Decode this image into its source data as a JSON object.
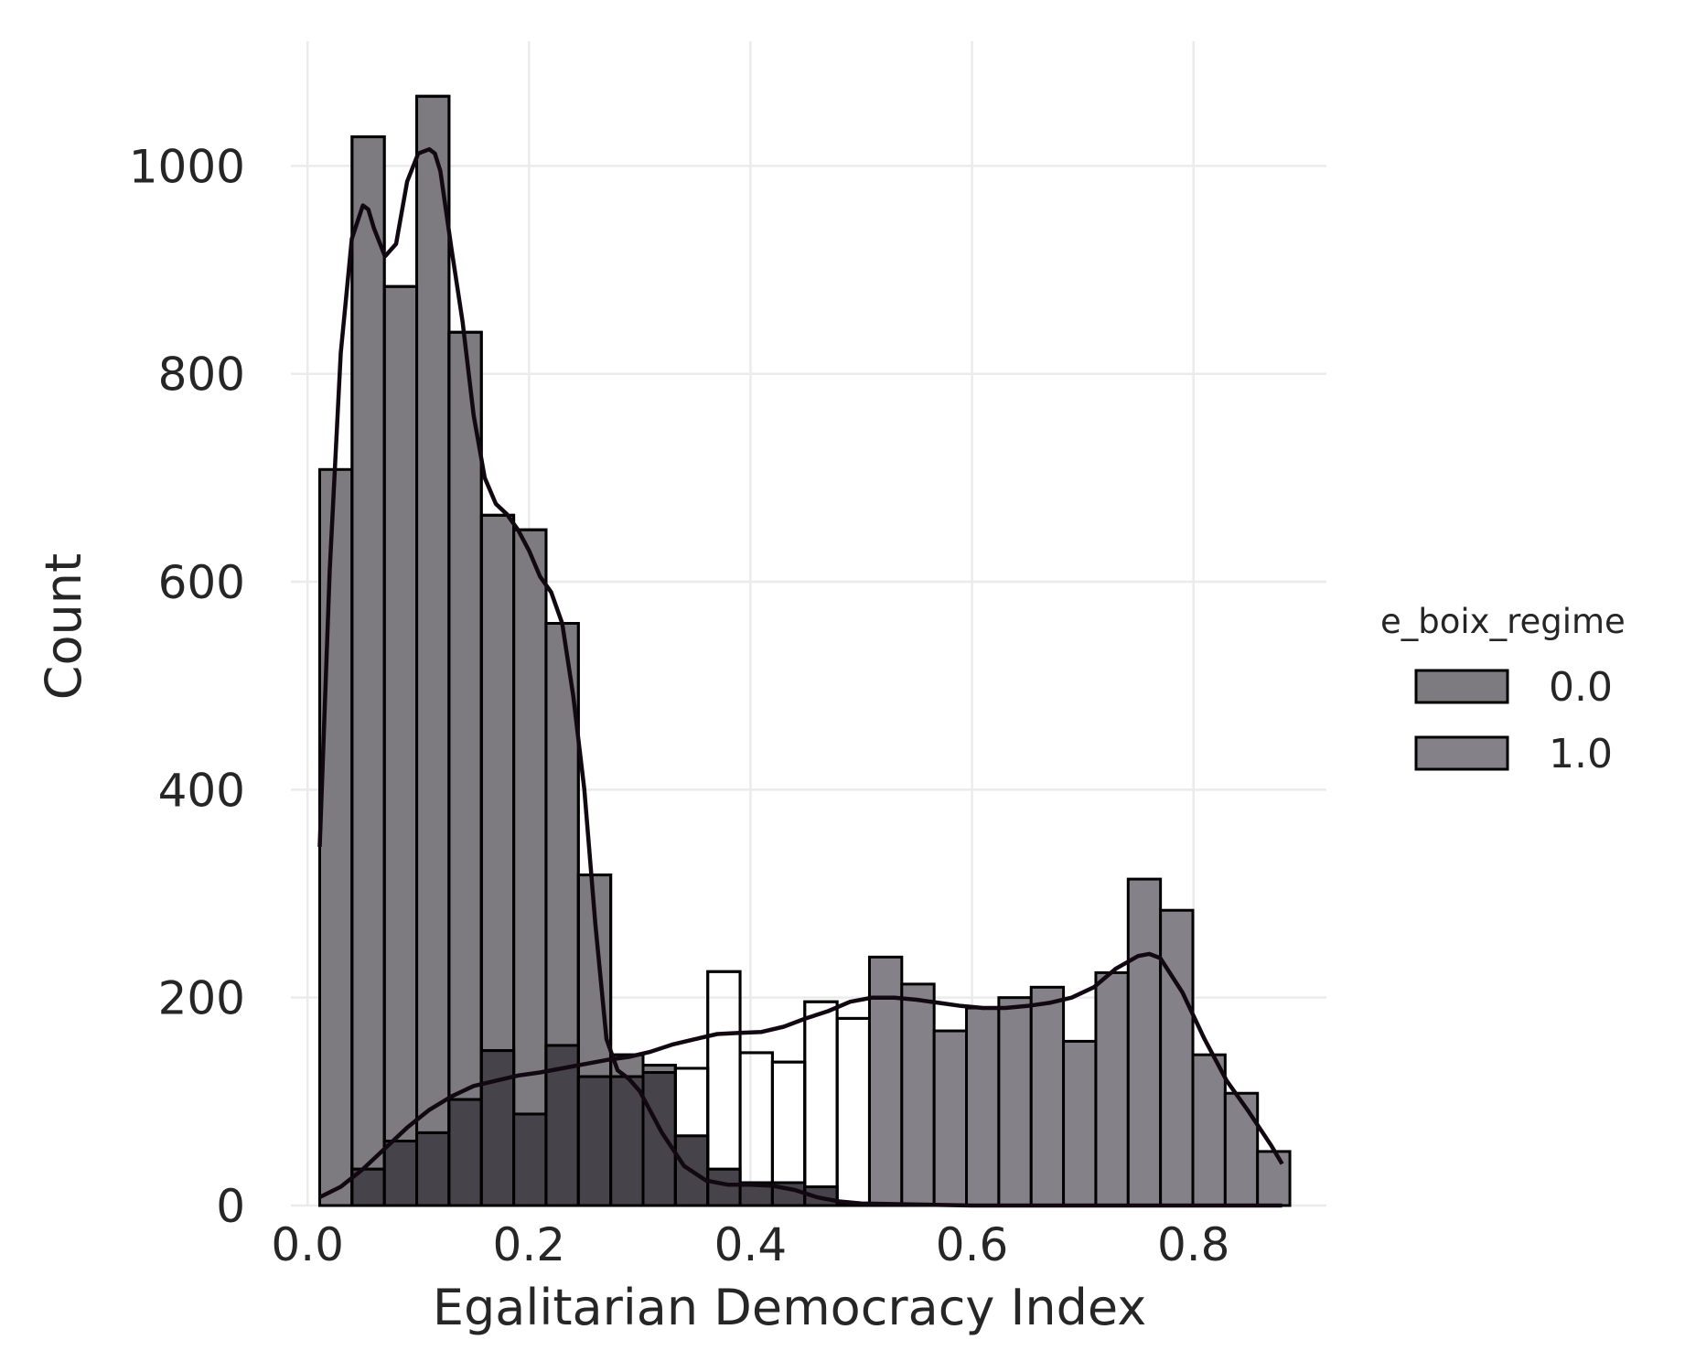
{
  "chart_data": {
    "type": "bar",
    "subtype": "stacked-histogram-with-kde",
    "xlabel": "Egalitarian Democracy Index",
    "ylabel": "Count",
    "xlim": [
      -0.015,
      0.92
    ],
    "ylim": [
      0,
      1120
    ],
    "xticks": [
      0.0,
      0.2,
      0.4,
      0.6,
      0.8
    ],
    "xtick_labels": [
      "0.0",
      "0.2",
      "0.4",
      "0.6",
      "0.8"
    ],
    "yticks": [
      0,
      200,
      400,
      600,
      800,
      1000
    ],
    "ytick_labels": [
      "0",
      "200",
      "400",
      "600",
      "800",
      "1000"
    ],
    "grid": true,
    "legend": {
      "title": "e_boix_regime",
      "position": "right",
      "entries": [
        "0.0",
        "1.0"
      ]
    },
    "bin_start": 0.011,
    "bin_width": 0.0292,
    "series": [
      {
        "name": "0.0",
        "color": "#7d7b7f",
        "values": [
          708,
          1028,
          884,
          1067,
          840,
          664,
          650,
          560,
          318,
          145,
          135,
          67,
          35,
          22,
          22,
          18,
          2,
          0,
          0,
          0,
          0,
          0,
          0,
          0,
          0,
          0,
          0,
          0,
          0,
          0,
          0
        ]
      },
      {
        "name": "1.0",
        "color": "#858188",
        "values": [
          0,
          35,
          62,
          70,
          102,
          149,
          88,
          154,
          124,
          124,
          128,
          132,
          225,
          147,
          138,
          196,
          180,
          239,
          213,
          168,
          190,
          200,
          210,
          158,
          224,
          314,
          284,
          145,
          108,
          52,
          0
        ]
      }
    ],
    "overlap_color": "#47434a",
    "kde": [
      {
        "name": "0.0",
        "x": [
          0.011,
          0.02,
          0.03,
          0.04,
          0.05,
          0.055,
          0.06,
          0.07,
          0.08,
          0.09,
          0.1,
          0.11,
          0.115,
          0.12,
          0.13,
          0.14,
          0.15,
          0.16,
          0.17,
          0.18,
          0.19,
          0.2,
          0.21,
          0.22,
          0.23,
          0.24,
          0.25,
          0.26,
          0.27,
          0.28,
          0.29,
          0.3,
          0.32,
          0.34,
          0.36,
          0.38,
          0.4,
          0.42,
          0.44,
          0.46,
          0.48,
          0.5,
          0.55,
          0.6,
          0.7,
          0.8,
          0.88
        ],
        "y": [
          345,
          610,
          820,
          930,
          962,
          958,
          940,
          913,
          925,
          985,
          1012,
          1016,
          1012,
          995,
          920,
          850,
          760,
          700,
          675,
          665,
          650,
          630,
          605,
          590,
          560,
          490,
          400,
          270,
          160,
          130,
          122,
          110,
          70,
          38,
          24,
          20,
          20,
          19,
          15,
          8,
          4,
          2,
          1,
          0,
          0,
          0,
          0
        ]
      },
      {
        "name": "1.0",
        "x": [
          0.011,
          0.03,
          0.05,
          0.07,
          0.09,
          0.11,
          0.13,
          0.15,
          0.17,
          0.19,
          0.21,
          0.23,
          0.25,
          0.27,
          0.29,
          0.31,
          0.33,
          0.35,
          0.37,
          0.39,
          0.41,
          0.43,
          0.45,
          0.47,
          0.49,
          0.51,
          0.53,
          0.55,
          0.57,
          0.59,
          0.61,
          0.63,
          0.65,
          0.67,
          0.69,
          0.71,
          0.73,
          0.75,
          0.76,
          0.77,
          0.79,
          0.81,
          0.83,
          0.85,
          0.87,
          0.88
        ],
        "y": [
          8,
          18,
          35,
          55,
          75,
          92,
          105,
          115,
          120,
          125,
          128,
          132,
          136,
          140,
          143,
          148,
          155,
          160,
          165,
          166,
          167,
          172,
          180,
          187,
          196,
          200,
          200,
          198,
          195,
          192,
          190,
          190,
          192,
          195,
          200,
          210,
          228,
          240,
          242,
          238,
          205,
          160,
          120,
          90,
          58,
          40
        ]
      }
    ]
  }
}
